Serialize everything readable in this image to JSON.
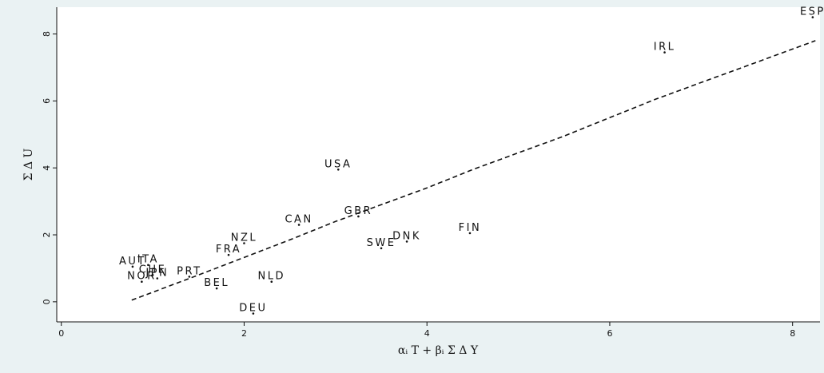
{
  "chart_data": {
    "type": "scatter",
    "title": "",
    "xlabel": "αᵢ T + βᵢ Σ Δ Y",
    "ylabel": "Σ Δ U",
    "xlim": [
      -0.05,
      8.3
    ],
    "ylim": [
      -0.6,
      8.8
    ],
    "x_ticks": [
      0,
      2,
      4,
      6,
      8
    ],
    "y_ticks": [
      0,
      2,
      4,
      6,
      8
    ],
    "x_tick_labels": [
      "0",
      "2",
      "4",
      "6",
      "8"
    ],
    "y_tick_labels": [
      "0",
      "2",
      "4",
      "6",
      "8"
    ],
    "grid": false,
    "legend": "none",
    "points": [
      {
        "label": "ESP",
        "x": 8.22,
        "y": 8.5
      },
      {
        "label": "IRL",
        "x": 6.6,
        "y": 7.45
      },
      {
        "label": "USA",
        "x": 3.03,
        "y": 3.95
      },
      {
        "label": "CAN",
        "x": 2.6,
        "y": 2.3
      },
      {
        "label": "GBR",
        "x": 3.25,
        "y": 2.55
      },
      {
        "label": "FIN",
        "x": 4.47,
        "y": 2.05
      },
      {
        "label": "DNK",
        "x": 3.78,
        "y": 1.8
      },
      {
        "label": "SWE",
        "x": 3.5,
        "y": 1.6
      },
      {
        "label": "NZL",
        "x": 2.0,
        "y": 1.75
      },
      {
        "label": "FRA",
        "x": 1.83,
        "y": 1.4
      },
      {
        "label": "NLD",
        "x": 2.3,
        "y": 0.6
      },
      {
        "label": "BEL",
        "x": 1.7,
        "y": 0.4
      },
      {
        "label": "DEU",
        "x": 2.1,
        "y": -0.35
      },
      {
        "label": "PRT",
        "x": 1.4,
        "y": 0.75
      },
      {
        "label": "AUT",
        "x": 0.78,
        "y": 1.05
      },
      {
        "label": "ITA",
        "x": 0.95,
        "y": 1.1
      },
      {
        "label": "CHE",
        "x": 1.0,
        "y": 0.8
      },
      {
        "label": "JPN",
        "x": 1.05,
        "y": 0.7
      },
      {
        "label": "NOR",
        "x": 0.88,
        "y": 0.6
      }
    ],
    "fit_line": {
      "style": "dashed",
      "x": [
        0.77,
        1.5,
        2.5,
        3.0,
        3.5,
        4.0,
        4.5,
        5.0,
        5.5,
        6.0,
        6.5,
        7.0,
        7.5,
        8.0,
        8.25
      ],
      "y": [
        0.05,
        0.8,
        1.85,
        2.4,
        2.9,
        3.4,
        3.95,
        4.45,
        4.95,
        5.5,
        6.05,
        6.55,
        7.05,
        7.55,
        7.8
      ]
    },
    "colors": {
      "outer_background": "#eaf2f3",
      "plot_background": "#ffffff",
      "marks": "#111111"
    }
  }
}
